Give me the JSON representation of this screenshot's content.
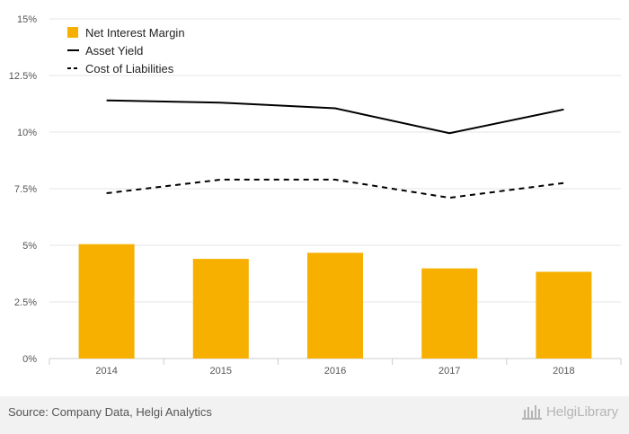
{
  "chart_data": {
    "type": "bar",
    "categories": [
      "2014",
      "2015",
      "2016",
      "2017",
      "2018"
    ],
    "series": [
      {
        "name": "Net Interest Margin",
        "kind": "bar",
        "color": "#f7b000",
        "values": [
          5.05,
          4.4,
          4.67,
          3.98,
          3.83
        ]
      },
      {
        "name": "Asset Yield",
        "kind": "line",
        "style": "solid",
        "color": "#000000",
        "values": [
          11.4,
          11.3,
          11.05,
          9.95,
          11.0
        ]
      },
      {
        "name": "Cost of Liabilities",
        "kind": "line",
        "style": "dashed",
        "color": "#000000",
        "values": [
          7.3,
          7.9,
          7.9,
          7.1,
          7.75
        ]
      }
    ],
    "yticks": [
      "0%",
      "2.5%",
      "5%",
      "7.5%",
      "10%",
      "12.5%",
      "15%"
    ],
    "ylim": [
      0,
      15
    ],
    "xlabel": "",
    "ylabel": "",
    "grid": true,
    "legend_position": "top-left"
  },
  "footer": {
    "source": "Source: Company Data, Helgi Analytics",
    "brand": "HelgiLibrary"
  },
  "colors": {
    "bar": "#f7b000",
    "grid": "#e6e6e6",
    "footer_bg": "#f2f2f2"
  }
}
